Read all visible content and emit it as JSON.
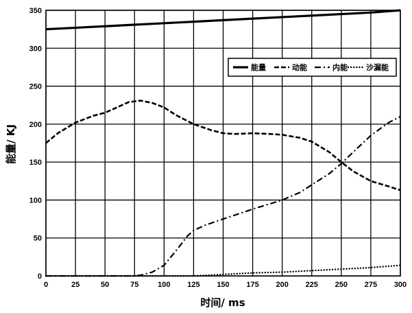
{
  "chart_data": {
    "type": "line",
    "xlabel": "时间/ ms",
    "ylabel": "能量/ KJ",
    "xlim": [
      0,
      300
    ],
    "ylim": [
      0,
      350
    ],
    "xticks": [
      0,
      25,
      50,
      75,
      100,
      125,
      150,
      175,
      200,
      225,
      250,
      275,
      300
    ],
    "yticks": [
      0,
      50,
      100,
      150,
      200,
      250,
      300,
      350
    ],
    "grid": true,
    "legend_position": "top-right",
    "series": [
      {
        "name": "能量",
        "style": "solid",
        "x": [
          0,
          25,
          50,
          75,
          100,
          125,
          150,
          175,
          200,
          225,
          250,
          275,
          300
        ],
        "y": [
          325,
          327,
          329,
          331,
          333,
          335,
          337,
          339,
          341,
          343,
          345,
          347,
          350
        ]
      },
      {
        "name": "动能",
        "style": "dashed",
        "x": [
          0,
          10,
          25,
          40,
          50,
          60,
          70,
          80,
          90,
          100,
          110,
          125,
          140,
          150,
          160,
          175,
          190,
          200,
          215,
          225,
          240,
          250,
          260,
          275,
          290,
          300
        ],
        "y": [
          175,
          188,
          202,
          211,
          215,
          222,
          229,
          231,
          228,
          222,
          212,
          200,
          192,
          188,
          187,
          188,
          187,
          186,
          182,
          177,
          163,
          150,
          138,
          125,
          118,
          113
        ]
      },
      {
        "name": "内能",
        "style": "dash-dot",
        "x": [
          0,
          75,
          80,
          90,
          100,
          110,
          120,
          125,
          135,
          150,
          175,
          200,
          215,
          225,
          240,
          250,
          260,
          275,
          290,
          300
        ],
        "y": [
          0,
          0,
          1,
          5,
          14,
          33,
          53,
          60,
          67,
          75,
          88,
          100,
          110,
          120,
          135,
          148,
          163,
          185,
          202,
          210
        ]
      },
      {
        "name": "沙漏能",
        "style": "dotted",
        "x": [
          0,
          125,
          150,
          175,
          200,
          225,
          250,
          275,
          300
        ],
        "y": [
          0,
          0,
          2,
          4,
          5,
          7,
          9,
          11,
          14
        ]
      }
    ]
  }
}
